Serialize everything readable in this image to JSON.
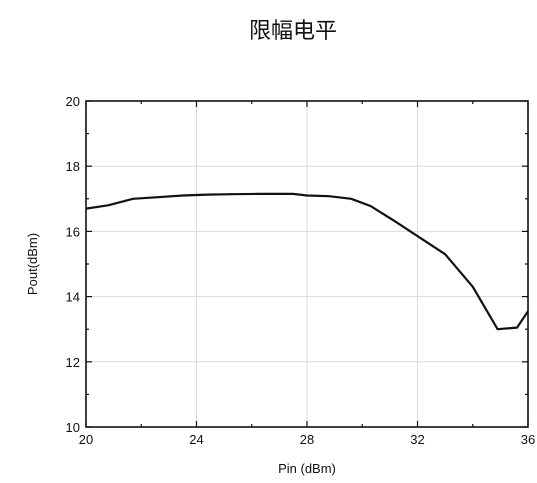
{
  "chart_data": {
    "type": "line",
    "title": "限幅电平",
    "xlabel": "Pin (dBm)",
    "ylabel": "Pout(dBm)",
    "xlim": [
      20,
      36
    ],
    "ylim": [
      10,
      20
    ],
    "xticks": [
      20,
      24,
      28,
      32,
      36
    ],
    "yticks": [
      10,
      12,
      14,
      16,
      18,
      20
    ],
    "grid": true,
    "series": [
      {
        "x": [
          20,
          20.8,
          21.7,
          22.6,
          23.5,
          24.4,
          25.3,
          26.2,
          27.1,
          27.5,
          28.0,
          28.8,
          29.6,
          30.3,
          31.2,
          32.1,
          33.0,
          34.0,
          34.9,
          35.6,
          36.0
        ],
        "y": [
          16.7,
          16.8,
          17.0,
          17.05,
          17.1,
          17.13,
          17.14,
          17.15,
          17.15,
          17.15,
          17.1,
          17.08,
          17.0,
          16.78,
          16.3,
          15.8,
          15.3,
          14.3,
          13.0,
          13.05,
          13.55
        ]
      }
    ]
  }
}
